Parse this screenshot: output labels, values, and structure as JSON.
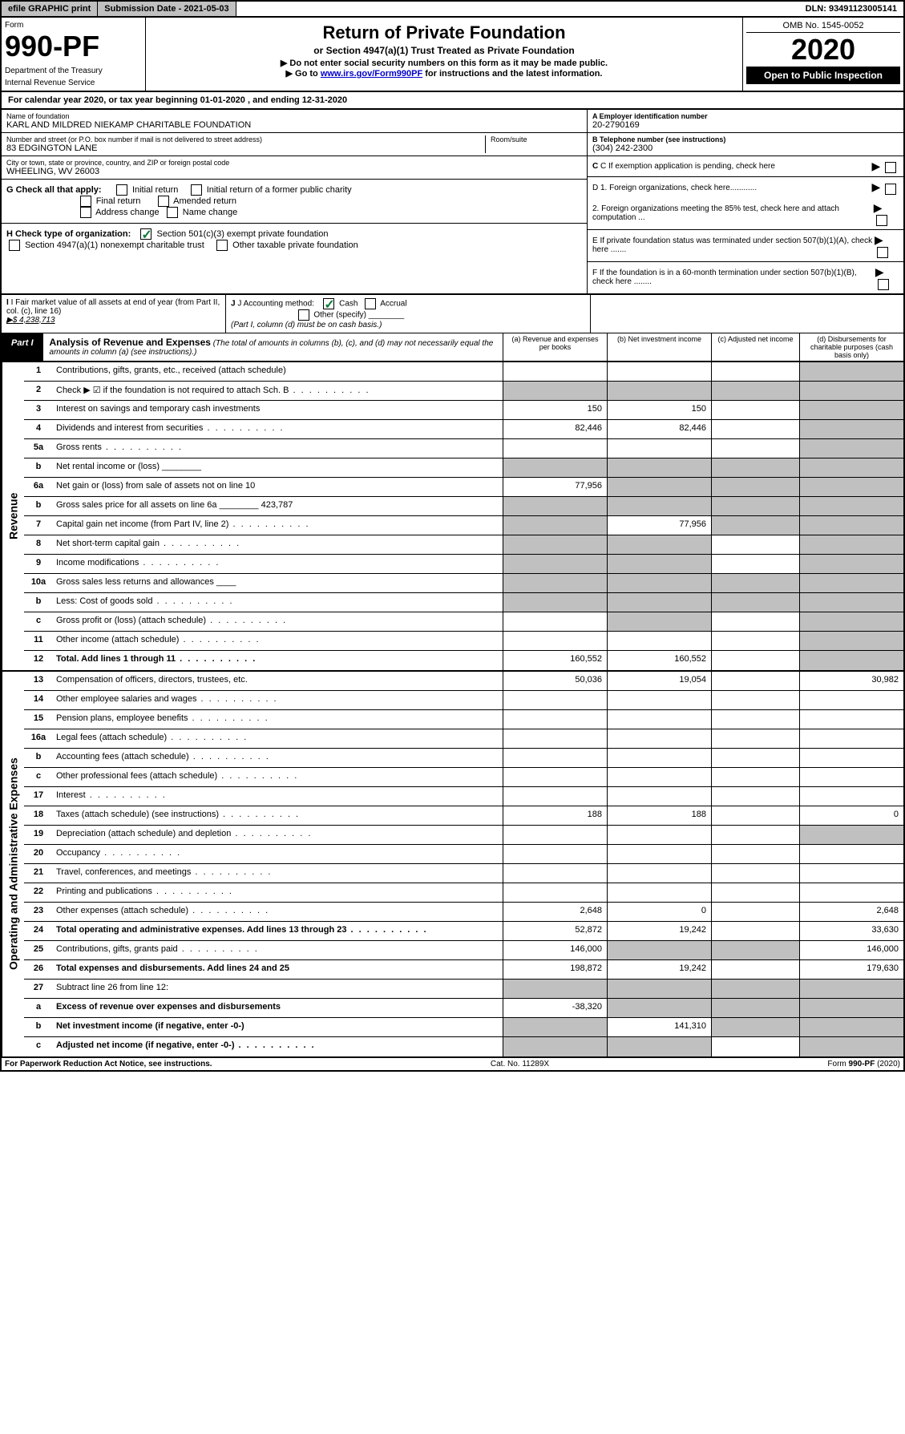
{
  "topbar": {
    "efile": "efile GRAPHIC print",
    "submission": "Submission Date - 2021-05-03",
    "dln": "DLN: 93491123005141"
  },
  "header": {
    "form_label": "Form",
    "form_number": "990-PF",
    "dept1": "Department of the Treasury",
    "dept2": "Internal Revenue Service",
    "title": "Return of Private Foundation",
    "subtitle": "or Section 4947(a)(1) Trust Treated as Private Foundation",
    "instr1": "▶ Do not enter social security numbers on this form as it may be made public.",
    "instr2_pre": "▶ Go to ",
    "instr2_link": "www.irs.gov/Form990PF",
    "instr2_post": " for instructions and the latest information.",
    "omb": "OMB No. 1545-0052",
    "year": "2020",
    "open_public": "Open to Public Inspection"
  },
  "cal_year": "For calendar year 2020, or tax year beginning 01-01-2020                        , and ending 12-31-2020",
  "info": {
    "name_label": "Name of foundation",
    "name": "KARL AND MILDRED NIEKAMP CHARITABLE FOUNDATION",
    "addr_label": "Number and street (or P.O. box number if mail is not delivered to street address)",
    "addr": "83 EDGINGTON LANE",
    "room_label": "Room/suite",
    "city_label": "City or town, state or province, country, and ZIP or foreign postal code",
    "city": "WHEELING, WV  26003",
    "ein_label": "A Employer identification number",
    "ein": "20-2790169",
    "phone_label": "B Telephone number (see instructions)",
    "phone": "(304) 242-2300",
    "c_label": "C If exemption application is pending, check here"
  },
  "checks": {
    "g_label": "G Check all that apply:",
    "initial": "Initial return",
    "initial_former": "Initial return of a former public charity",
    "final": "Final return",
    "amended": "Amended return",
    "addr_change": "Address change",
    "name_change": "Name change",
    "h_label": "H Check type of organization:",
    "h1": "Section 501(c)(3) exempt private foundation",
    "h2": "Section 4947(a)(1) nonexempt charitable trust",
    "h3": "Other taxable private foundation",
    "d1": "D 1. Foreign organizations, check here............",
    "d2": "2. Foreign organizations meeting the 85% test, check here and attach computation ...",
    "e": "E  If private foundation status was terminated under section 507(b)(1)(A), check here .......",
    "f": "F  If the foundation is in a 60-month termination under section 507(b)(1)(B), check here ........"
  },
  "fmv": {
    "i_label": "I Fair market value of all assets at end of year (from Part II, col. (c), line 16)",
    "i_value": "▶$  4,238,713",
    "j_label": "J Accounting method:",
    "j_cash": "Cash",
    "j_accrual": "Accrual",
    "j_other": "Other (specify)",
    "j_note": "(Part I, column (d) must be on cash basis.)"
  },
  "part1": {
    "label": "Part I",
    "title": "Analysis of Revenue and Expenses",
    "note": "(The total of amounts in columns (b), (c), and (d) may not necessarily equal the amounts in column (a) (see instructions).)",
    "col_a": "(a)    Revenue and expenses per books",
    "col_b": "(b)  Net investment income",
    "col_c": "(c)  Adjusted net income",
    "col_d": "(d)  Disbursements for charitable purposes (cash basis only)"
  },
  "revenue_label": "Revenue",
  "expenses_label": "Operating and Administrative Expenses",
  "rows": [
    {
      "n": "1",
      "desc": "Contributions, gifts, grants, etc., received (attach schedule)",
      "a": "",
      "b": "",
      "c": "",
      "d": "shaded"
    },
    {
      "n": "2",
      "desc": "Check ▶ ☑ if the foundation is not required to attach Sch. B",
      "a": "shaded",
      "b": "shaded",
      "c": "shaded",
      "d": "shaded",
      "dots": true
    },
    {
      "n": "3",
      "desc": "Interest on savings and temporary cash investments",
      "a": "150",
      "b": "150",
      "c": "",
      "d": "shaded"
    },
    {
      "n": "4",
      "desc": "Dividends and interest from securities",
      "a": "82,446",
      "b": "82,446",
      "c": "",
      "d": "shaded",
      "dots": true
    },
    {
      "n": "5a",
      "desc": "Gross rents",
      "a": "",
      "b": "",
      "c": "",
      "d": "shaded",
      "dots": true
    },
    {
      "n": "b",
      "desc": "Net rental income or (loss)  ________",
      "a": "shaded",
      "b": "shaded",
      "c": "shaded",
      "d": "shaded"
    },
    {
      "n": "6a",
      "desc": "Net gain or (loss) from sale of assets not on line 10",
      "a": "77,956",
      "b": "shaded",
      "c": "shaded",
      "d": "shaded"
    },
    {
      "n": "b",
      "desc": "Gross sales price for all assets on line 6a ________ 423,787",
      "a": "shaded",
      "b": "shaded",
      "c": "shaded",
      "d": "shaded"
    },
    {
      "n": "7",
      "desc": "Capital gain net income (from Part IV, line 2)",
      "a": "shaded",
      "b": "77,956",
      "c": "shaded",
      "d": "shaded",
      "dots": true
    },
    {
      "n": "8",
      "desc": "Net short-term capital gain",
      "a": "shaded",
      "b": "shaded",
      "c": "",
      "d": "shaded",
      "dots": true
    },
    {
      "n": "9",
      "desc": "Income modifications",
      "a": "shaded",
      "b": "shaded",
      "c": "",
      "d": "shaded",
      "dots": true
    },
    {
      "n": "10a",
      "desc": "Gross sales less returns and allowances  ____",
      "a": "shaded",
      "b": "shaded",
      "c": "shaded",
      "d": "shaded"
    },
    {
      "n": "b",
      "desc": "Less: Cost of goods sold",
      "a": "shaded",
      "b": "shaded",
      "c": "shaded",
      "d": "shaded",
      "dots": true
    },
    {
      "n": "c",
      "desc": "Gross profit or (loss) (attach schedule)",
      "a": "",
      "b": "shaded",
      "c": "",
      "d": "shaded",
      "dots": true
    },
    {
      "n": "11",
      "desc": "Other income (attach schedule)",
      "a": "",
      "b": "",
      "c": "",
      "d": "shaded",
      "dots": true
    },
    {
      "n": "12",
      "desc": "Total. Add lines 1 through 11",
      "a": "160,552",
      "b": "160,552",
      "c": "",
      "d": "shaded",
      "bold": true,
      "dots": true
    }
  ],
  "exp_rows": [
    {
      "n": "13",
      "desc": "Compensation of officers, directors, trustees, etc.",
      "a": "50,036",
      "b": "19,054",
      "c": "",
      "d": "30,982"
    },
    {
      "n": "14",
      "desc": "Other employee salaries and wages",
      "a": "",
      "b": "",
      "c": "",
      "d": "",
      "dots": true
    },
    {
      "n": "15",
      "desc": "Pension plans, employee benefits",
      "a": "",
      "b": "",
      "c": "",
      "d": "",
      "dots": true
    },
    {
      "n": "16a",
      "desc": "Legal fees (attach schedule)",
      "a": "",
      "b": "",
      "c": "",
      "d": "",
      "dots": true
    },
    {
      "n": "b",
      "desc": "Accounting fees (attach schedule)",
      "a": "",
      "b": "",
      "c": "",
      "d": "",
      "dots": true
    },
    {
      "n": "c",
      "desc": "Other professional fees (attach schedule)",
      "a": "",
      "b": "",
      "c": "",
      "d": "",
      "dots": true
    },
    {
      "n": "17",
      "desc": "Interest",
      "a": "",
      "b": "",
      "c": "",
      "d": "",
      "dots": true
    },
    {
      "n": "18",
      "desc": "Taxes (attach schedule) (see instructions)",
      "a": "188",
      "b": "188",
      "c": "",
      "d": "0",
      "dots": true
    },
    {
      "n": "19",
      "desc": "Depreciation (attach schedule) and depletion",
      "a": "",
      "b": "",
      "c": "",
      "d": "shaded",
      "dots": true
    },
    {
      "n": "20",
      "desc": "Occupancy",
      "a": "",
      "b": "",
      "c": "",
      "d": "",
      "dots": true
    },
    {
      "n": "21",
      "desc": "Travel, conferences, and meetings",
      "a": "",
      "b": "",
      "c": "",
      "d": "",
      "dots": true
    },
    {
      "n": "22",
      "desc": "Printing and publications",
      "a": "",
      "b": "",
      "c": "",
      "d": "",
      "dots": true
    },
    {
      "n": "23",
      "desc": "Other expenses (attach schedule)",
      "a": "2,648",
      "b": "0",
      "c": "",
      "d": "2,648",
      "dots": true
    },
    {
      "n": "24",
      "desc": "Total operating and administrative expenses. Add lines 13 through 23",
      "a": "52,872",
      "b": "19,242",
      "c": "",
      "d": "33,630",
      "bold": true,
      "dots": true
    },
    {
      "n": "25",
      "desc": "Contributions, gifts, grants paid",
      "a": "146,000",
      "b": "shaded",
      "c": "shaded",
      "d": "146,000",
      "dots": true
    },
    {
      "n": "26",
      "desc": "Total expenses and disbursements. Add lines 24 and 25",
      "a": "198,872",
      "b": "19,242",
      "c": "",
      "d": "179,630",
      "bold": true
    },
    {
      "n": "27",
      "desc": "Subtract line 26 from line 12:",
      "a": "shaded",
      "b": "shaded",
      "c": "shaded",
      "d": "shaded"
    },
    {
      "n": "a",
      "desc": "Excess of revenue over expenses and disbursements",
      "a": "-38,320",
      "b": "shaded",
      "c": "shaded",
      "d": "shaded",
      "bold": true
    },
    {
      "n": "b",
      "desc": "Net investment income (if negative, enter -0-)",
      "a": "shaded",
      "b": "141,310",
      "c": "shaded",
      "d": "shaded",
      "bold": true
    },
    {
      "n": "c",
      "desc": "Adjusted net income (if negative, enter -0-)",
      "a": "shaded",
      "b": "shaded",
      "c": "",
      "d": "shaded",
      "bold": true,
      "dots": true
    }
  ],
  "footer": {
    "left": "For Paperwork Reduction Act Notice, see instructions.",
    "center": "Cat. No. 11289X",
    "right": "Form 990-PF (2020)"
  }
}
